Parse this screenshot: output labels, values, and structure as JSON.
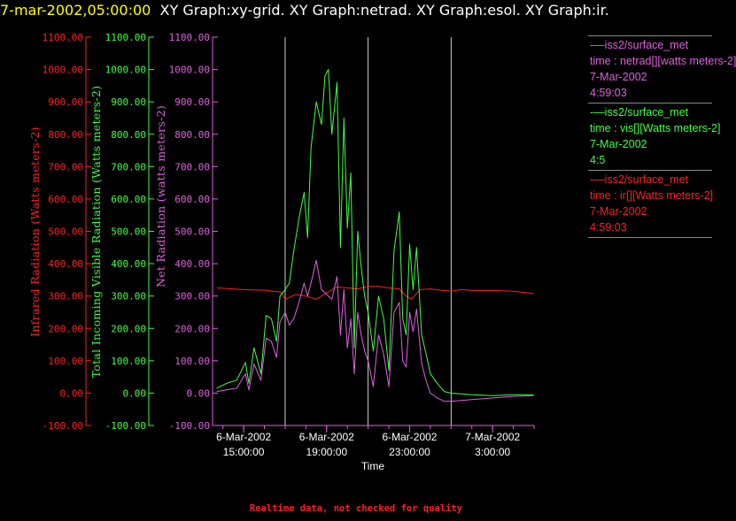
{
  "header": {
    "timestamp": "7-mar-2002,05:00:00",
    "title": "XY Graph:xy-grid.  XY Graph:netrad.  XY Graph:esol.  XY Graph:ir."
  },
  "legend": [
    {
      "line1": "-—iss2/surface_met",
      "line2": "time : netrad[][watts meters-2]",
      "line3": "7-Mar-2002",
      "line4": "4:59:03",
      "color": "#e060e0"
    },
    {
      "line1": "-—iss2/surface_met",
      "line2": "time : vis[][Watts meters-2]",
      "line3": "7-Mar-2002",
      "line4": "4:5",
      "color": "#40ff40"
    },
    {
      "line1": "-—iss2/surface_met",
      "line2": "time : ir[][Watts meters-2]",
      "line3": "7-Mar-2002",
      "line4": "4:59:03",
      "color": "#ff2020"
    }
  ],
  "footnote": "Realtime data, not checked for quality",
  "colors": {
    "ir": "#ff2020",
    "vis": "#40ff40",
    "netrad": "#e060e0",
    "background": "#000000",
    "grid": "#ffffff"
  },
  "chart_data": {
    "type": "line",
    "xlabel": "Time",
    "x_range": [
      "6-Mar-2002 13:30",
      "7-Mar-2002 5:00"
    ],
    "x_ticks": [
      {
        "date": "6-Mar-2002",
        "time": "15:00:00"
      },
      {
        "date": "6-Mar-2002",
        "time": "19:00:00"
      },
      {
        "date": "6-Mar-2002",
        "time": "23:00:00"
      },
      {
        "date": "7-Mar-2002",
        "time": "3:00:00"
      }
    ],
    "vertical_gridlines_at": [
      "6-Mar-2002 17:00",
      "6-Mar-2002 21:00",
      "7-Mar-2002 1:00"
    ],
    "y_axes": [
      {
        "series": "ir",
        "label": "Infrared Radiation (Watts meters-2)",
        "ylim": [
          -100,
          1100
        ],
        "ticks": [
          "-100.00",
          "0.00",
          "100.00",
          "200.00",
          "300.00",
          "400.00",
          "500.00",
          "600.00",
          "700.00",
          "800.00",
          "900.00",
          "1000.00",
          "1100.00"
        ]
      },
      {
        "series": "vis",
        "label": "Total Incoming Visible Radiation (Watts meters-2)",
        "ylim": [
          -100,
          1100
        ],
        "ticks": [
          "-100.00",
          "0.00",
          "100.00",
          "200.00",
          "300.00",
          "400.00",
          "500.00",
          "600.00",
          "700.00",
          "800.00",
          "900.00",
          "1000.00",
          "1100.00"
        ]
      },
      {
        "series": "netrad",
        "label": "Net Radiation (watts meters-2)",
        "ylim": [
          -100,
          1100
        ],
        "ticks": [
          "-100.00",
          "0.00",
          "100.00",
          "200.00",
          "300.00",
          "400.00",
          "500.00",
          "600.00",
          "700.00",
          "800.00",
          "900.00",
          "1000.00",
          "1100.00"
        ]
      }
    ],
    "series": [
      {
        "name": "iss2/surface_met time : ir[][Watts meters-2]",
        "key": "ir",
        "x": [
          "6-Mar-2002 13:42",
          "6-Mar-2002 15:00",
          "6-Mar-2002 16:00",
          "6-Mar-2002 16:48",
          "6-Mar-2002 17:00",
          "6-Mar-2002 17:30",
          "6-Mar-2002 18:00",
          "6-Mar-2002 18:30",
          "6-Mar-2002 19:00",
          "6-Mar-2002 19:30",
          "6-Mar-2002 20:00",
          "6-Mar-2002 20:30",
          "6-Mar-2002 21:00",
          "6-Mar-2002 21:30",
          "6-Mar-2002 22:00",
          "6-Mar-2002 22:30",
          "6-Mar-2002 22:50",
          "6-Mar-2002 23:05",
          "6-Mar-2002 23:30",
          "7-Mar-2002 0:00",
          "7-Mar-2002 0:30",
          "7-Mar-2002 1:00",
          "7-Mar-2002 1:30",
          "7-Mar-2002 2:00",
          "7-Mar-2002 3:00",
          "7-Mar-2002 4:00",
          "7-Mar-2002 4:59"
        ],
        "y": [
          325,
          320,
          318,
          312,
          290,
          305,
          300,
          290,
          310,
          328,
          325,
          322,
          330,
          330,
          325,
          322,
          300,
          290,
          320,
          322,
          318,
          315,
          320,
          317,
          317,
          315,
          308
        ]
      },
      {
        "name": "iss2/surface_met time : vis[][Watts meters-2]",
        "key": "vis",
        "x": [
          "6-Mar-2002 13:42",
          "6-Mar-2002 14:10",
          "6-Mar-2002 14:40",
          "6-Mar-2002 15:05",
          "6-Mar-2002 15:15",
          "6-Mar-2002 15:30",
          "6-Mar-2002 15:50",
          "6-Mar-2002 16:05",
          "6-Mar-2002 16:20",
          "6-Mar-2002 16:35",
          "6-Mar-2002 16:45",
          "6-Mar-2002 17:00",
          "6-Mar-2002 17:12",
          "6-Mar-2002 17:25",
          "6-Mar-2002 17:40",
          "6-Mar-2002 17:55",
          "6-Mar-2002 18:05",
          "6-Mar-2002 18:15",
          "6-Mar-2002 18:30",
          "6-Mar-2002 18:45",
          "6-Mar-2002 18:55",
          "6-Mar-2002 19:05",
          "6-Mar-2002 19:15",
          "6-Mar-2002 19:30",
          "6-Mar-2002 19:40",
          "6-Mar-2002 19:50",
          "6-Mar-2002 20:00",
          "6-Mar-2002 20:10",
          "6-Mar-2002 20:20",
          "6-Mar-2002 20:30",
          "6-Mar-2002 20:40",
          "6-Mar-2002 20:50",
          "6-Mar-2002 21:00",
          "6-Mar-2002 21:15",
          "6-Mar-2002 21:30",
          "6-Mar-2002 21:45",
          "6-Mar-2002 22:00",
          "6-Mar-2002 22:15",
          "6-Mar-2002 22:30",
          "6-Mar-2002 22:40",
          "6-Mar-2002 22:50",
          "6-Mar-2002 23:00",
          "6-Mar-2002 23:10",
          "6-Mar-2002 23:20",
          "6-Mar-2002 23:35",
          "6-Mar-2002 23:50",
          "7-Mar-2002 0:00",
          "7-Mar-2002 0:20",
          "7-Mar-2002 0:40",
          "7-Mar-2002 1:00",
          "7-Mar-2002 2:00",
          "7-Mar-2002 3:00",
          "7-Mar-2002 4:00",
          "7-Mar-2002 4:59"
        ],
        "y": [
          15,
          30,
          40,
          95,
          30,
          140,
          60,
          240,
          230,
          160,
          300,
          320,
          340,
          440,
          540,
          620,
          480,
          760,
          900,
          830,
          980,
          1000,
          800,
          960,
          450,
          850,
          510,
          680,
          140,
          500,
          390,
          300,
          250,
          130,
          300,
          230,
          70,
          440,
          560,
          230,
          180,
          460,
          320,
          450,
          180,
          110,
          60,
          30,
          5,
          0,
          -5,
          -8,
          -5,
          -5
        ]
      },
      {
        "name": "iss2/surface_met time : netrad[][watts meters-2]",
        "key": "netrad",
        "x": [
          "6-Mar-2002 13:42",
          "6-Mar-2002 14:10",
          "6-Mar-2002 14:40",
          "6-Mar-2002 15:05",
          "6-Mar-2002 15:15",
          "6-Mar-2002 15:30",
          "6-Mar-2002 15:50",
          "6-Mar-2002 16:05",
          "6-Mar-2002 16:20",
          "6-Mar-2002 16:35",
          "6-Mar-2002 16:45",
          "6-Mar-2002 17:00",
          "6-Mar-2002 17:12",
          "6-Mar-2002 17:25",
          "6-Mar-2002 17:40",
          "6-Mar-2002 17:55",
          "6-Mar-2002 18:05",
          "6-Mar-2002 18:15",
          "6-Mar-2002 18:30",
          "6-Mar-2002 18:45",
          "6-Mar-2002 18:55",
          "6-Mar-2002 19:05",
          "6-Mar-2002 19:15",
          "6-Mar-2002 19:30",
          "6-Mar-2002 19:40",
          "6-Mar-2002 19:50",
          "6-Mar-2002 20:00",
          "6-Mar-2002 20:10",
          "6-Mar-2002 20:20",
          "6-Mar-2002 20:30",
          "6-Mar-2002 20:40",
          "6-Mar-2002 20:50",
          "6-Mar-2002 21:00",
          "6-Mar-2002 21:15",
          "6-Mar-2002 21:30",
          "6-Mar-2002 21:45",
          "6-Mar-2002 22:00",
          "6-Mar-2002 22:15",
          "6-Mar-2002 22:30",
          "6-Mar-2002 22:40",
          "6-Mar-2002 22:50",
          "6-Mar-2002 23:00",
          "6-Mar-2002 23:10",
          "6-Mar-2002 23:20",
          "6-Mar-2002 23:35",
          "6-Mar-2002 23:50",
          "7-Mar-2002 0:00",
          "7-Mar-2002 0:20",
          "7-Mar-2002 0:40",
          "7-Mar-2002 1:00",
          "7-Mar-2002 2:00",
          "7-Mar-2002 3:00",
          "7-Mar-2002 4:00",
          "7-Mar-2002 4:59"
        ],
        "y": [
          5,
          10,
          15,
          60,
          10,
          90,
          40,
          170,
          160,
          110,
          220,
          250,
          210,
          230,
          280,
          340,
          300,
          340,
          410,
          320,
          310,
          300,
          290,
          360,
          180,
          320,
          140,
          230,
          60,
          250,
          180,
          130,
          100,
          20,
          180,
          120,
          20,
          250,
          280,
          100,
          80,
          250,
          190,
          260,
          90,
          30,
          0,
          -15,
          -25,
          -25,
          -20,
          -15,
          -10,
          -8
        ]
      }
    ]
  }
}
